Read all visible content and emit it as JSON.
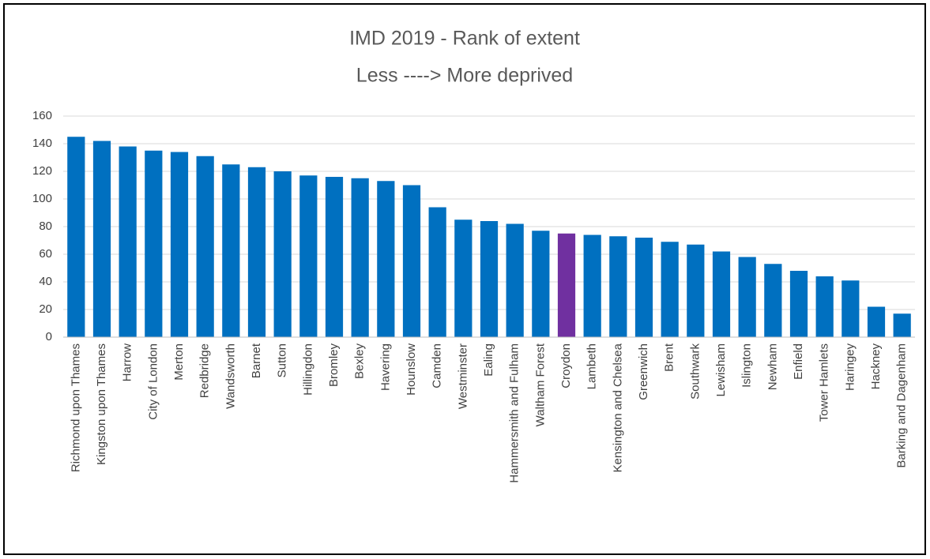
{
  "chart_data": {
    "type": "bar",
    "title": "IMD 2019 - Rank of extent",
    "subtitle": "Less ----> More deprived",
    "categories": [
      "Richmond upon Thames",
      "Kingston upon Thames",
      "Harrow",
      "City of London",
      "Merton",
      "Redbridge",
      "Wandsworth",
      "Barnet",
      "Sutton",
      "Hillingdon",
      "Bromley",
      "Bexley",
      "Havering",
      "Hounslow",
      "Camden",
      "Westminster",
      "Ealing",
      "Hammersmith and Fulham",
      "Waltham Forest",
      "Croydon",
      "Lambeth",
      "Kensington and Chelsea",
      "Greenwich",
      "Brent",
      "Southwark",
      "Lewisham",
      "Islington",
      "Newham",
      "Enfield",
      "Tower Hamlets",
      "Haringey",
      "Hackney",
      "Barking and Dagenham"
    ],
    "values": [
      145,
      142,
      138,
      135,
      134,
      131,
      125,
      123,
      120,
      117,
      116,
      115,
      113,
      110,
      94,
      85,
      84,
      82,
      77,
      75,
      74,
      73,
      72,
      69,
      67,
      62,
      58,
      53,
      48,
      44,
      41,
      22,
      17
    ],
    "colors": [
      "#0070c0",
      "#0070c0",
      "#0070c0",
      "#0070c0",
      "#0070c0",
      "#0070c0",
      "#0070c0",
      "#0070c0",
      "#0070c0",
      "#0070c0",
      "#0070c0",
      "#0070c0",
      "#0070c0",
      "#0070c0",
      "#0070c0",
      "#0070c0",
      "#0070c0",
      "#0070c0",
      "#0070c0",
      "#7030a0",
      "#0070c0",
      "#0070c0",
      "#0070c0",
      "#0070c0",
      "#0070c0",
      "#0070c0",
      "#0070c0",
      "#0070c0",
      "#0070c0",
      "#0070c0",
      "#0070c0",
      "#0070c0",
      "#0070c0"
    ],
    "ylim": [
      0,
      160
    ],
    "yticks": [
      0,
      20,
      40,
      60,
      80,
      100,
      120,
      140,
      160
    ],
    "grid": true
  }
}
